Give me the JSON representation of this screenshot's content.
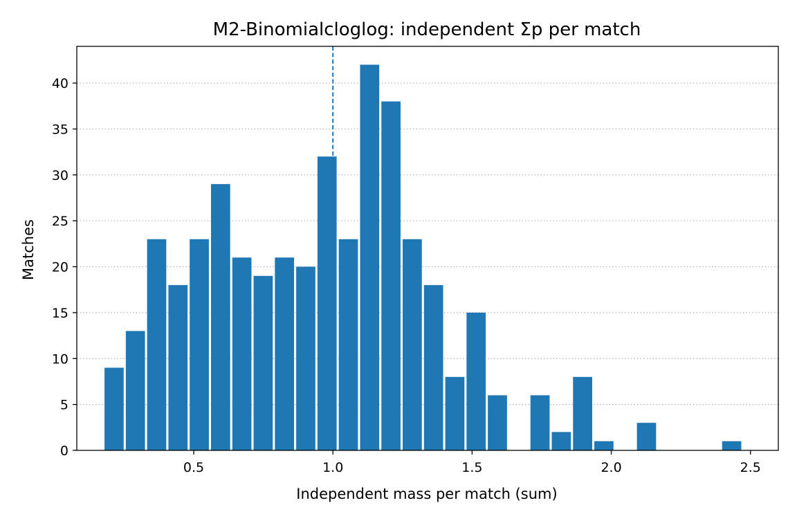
{
  "chart_data": {
    "type": "bar",
    "title": "M2-Binomialcloglog: independent Σp per match",
    "xlabel": "Independent mass per match (sum)",
    "ylabel": "Matches",
    "xlim": [
      0.08,
      2.6
    ],
    "ylim": [
      0,
      44
    ],
    "xticks": [
      0.5,
      1.0,
      1.5,
      2.0,
      2.5
    ],
    "xtick_labels": [
      "0.5",
      "1.0",
      "1.5",
      "2.0",
      "2.5"
    ],
    "yticks": [
      0,
      5,
      10,
      15,
      20,
      25,
      30,
      35,
      40
    ],
    "ytick_labels": [
      "0",
      "5",
      "10",
      "15",
      "20",
      "25",
      "30",
      "35",
      "40"
    ],
    "bin_width": 0.0765,
    "bin_centers": [
      0.214,
      0.2905,
      0.367,
      0.4435,
      0.52,
      0.5965,
      0.673,
      0.7495,
      0.826,
      0.9025,
      0.979,
      1.0555,
      1.132,
      1.2085,
      1.285,
      1.3615,
      1.438,
      1.5145,
      1.591,
      1.6675,
      1.744,
      1.8205,
      1.897,
      1.9735,
      2.05,
      2.1265,
      2.203,
      2.2795,
      2.356,
      2.4325
    ],
    "values": [
      9,
      13,
      23,
      18,
      23,
      29,
      21,
      19,
      21,
      20,
      32,
      23,
      42,
      38,
      23,
      18,
      8,
      15,
      6,
      0,
      6,
      2,
      8,
      1,
      0,
      3,
      0,
      0,
      0,
      1
    ],
    "reference_line": {
      "x": 1.0,
      "style": "dashed"
    },
    "grid": {
      "y": true,
      "x": false,
      "style": "dotted"
    },
    "colors": {
      "bar": "#1f77b4",
      "reference_line": "#1f77b4",
      "grid": "#b0b0b0"
    }
  }
}
